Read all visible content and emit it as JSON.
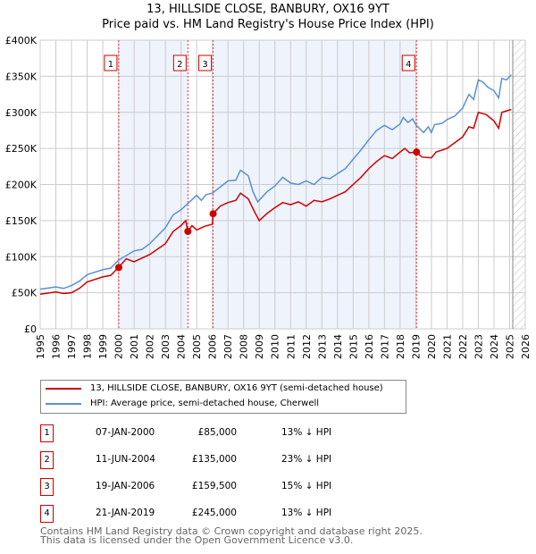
{
  "chart_data": {
    "type": "line",
    "title": "13, HILLSIDE CLOSE, BANBURY, OX16 9YT",
    "subtitle": "Price paid vs. HM Land Registry's House Price Index (HPI)",
    "xlim": [
      1995,
      2026
    ],
    "ylim": [
      0,
      400000
    ],
    "y_ticks": [
      0,
      50000,
      100000,
      150000,
      200000,
      250000,
      300000,
      350000,
      400000
    ],
    "y_tick_labels": [
      "£0",
      "£50K",
      "£100K",
      "£150K",
      "£200K",
      "£250K",
      "£300K",
      "£350K",
      "£400K"
    ],
    "x_ticks": [
      1995,
      1996,
      1997,
      1998,
      1999,
      2000,
      2001,
      2002,
      2003,
      2004,
      2005,
      2006,
      2007,
      2008,
      2009,
      2010,
      2011,
      2012,
      2013,
      2014,
      2015,
      2016,
      2017,
      2018,
      2019,
      2020,
      2021,
      2022,
      2023,
      2024,
      2025,
      2026
    ],
    "grid": true,
    "shaded_ranges": [
      [
        2000.02,
        2004.44
      ],
      [
        2006.05,
        2019.05
      ]
    ],
    "forecast_hatch_from": 2025.2,
    "series": [
      {
        "name": "13, HILLSIDE CLOSE, BANBURY, OX16 9YT (semi-detached house)",
        "color": "#cc0000",
        "points": [
          [
            1995,
            48
          ],
          [
            1996,
            51
          ],
          [
            1996.5,
            49
          ],
          [
            1997,
            50
          ],
          [
            1997.5,
            56
          ],
          [
            1998,
            65
          ],
          [
            1999,
            72
          ],
          [
            1999.5,
            74
          ],
          [
            2000,
            85
          ],
          [
            2000.5,
            97
          ],
          [
            2001,
            93
          ],
          [
            2002,
            103
          ],
          [
            2003,
            118
          ],
          [
            2003.5,
            135
          ],
          [
            2004,
            143
          ],
          [
            2004.3,
            150
          ],
          [
            2004.44,
            135
          ],
          [
            2004.7,
            143
          ],
          [
            2005,
            137
          ],
          [
            2005.5,
            142
          ],
          [
            2006,
            145
          ],
          [
            2006.05,
            159.5
          ],
          [
            2006.5,
            170
          ],
          [
            2007,
            175
          ],
          [
            2007.5,
            178
          ],
          [
            2007.8,
            188
          ],
          [
            2008.3,
            180
          ],
          [
            2008.7,
            162
          ],
          [
            2009,
            150
          ],
          [
            2009.5,
            160
          ],
          [
            2010,
            168
          ],
          [
            2010.5,
            175
          ],
          [
            2011,
            172
          ],
          [
            2011.5,
            176
          ],
          [
            2012,
            170
          ],
          [
            2012.5,
            178
          ],
          [
            2013,
            176
          ],
          [
            2013.5,
            180
          ],
          [
            2014,
            185
          ],
          [
            2014.5,
            190
          ],
          [
            2015,
            200
          ],
          [
            2015.5,
            210
          ],
          [
            2016,
            222
          ],
          [
            2016.5,
            232
          ],
          [
            2017,
            240
          ],
          [
            2017.5,
            236
          ],
          [
            2018,
            245
          ],
          [
            2018.3,
            250
          ],
          [
            2018.6,
            244
          ],
          [
            2019.05,
            245
          ],
          [
            2019.4,
            238
          ],
          [
            2020,
            237
          ],
          [
            2020.3,
            245
          ],
          [
            2021,
            250
          ],
          [
            2021.5,
            258
          ],
          [
            2022,
            266
          ],
          [
            2022.4,
            280
          ],
          [
            2022.7,
            278
          ],
          [
            2023,
            300
          ],
          [
            2023.5,
            297
          ],
          [
            2024,
            288
          ],
          [
            2024.3,
            278
          ],
          [
            2024.5,
            300
          ],
          [
            2025.1,
            304
          ]
        ]
      },
      {
        "name": "HPI: Average price, semi-detached house, Cherwell",
        "color": "#5b8fd6",
        "points": [
          [
            1995,
            55
          ],
          [
            1996,
            58
          ],
          [
            1996.5,
            56
          ],
          [
            1997,
            60
          ],
          [
            1997.5,
            66
          ],
          [
            1998,
            75
          ],
          [
            1999,
            82
          ],
          [
            1999.5,
            84
          ],
          [
            2000,
            95
          ],
          [
            2001,
            108
          ],
          [
            2001.5,
            110
          ],
          [
            2002,
            118
          ],
          [
            2003,
            140
          ],
          [
            2003.5,
            158
          ],
          [
            2004,
            165
          ],
          [
            2004.5,
            175
          ],
          [
            2005,
            185
          ],
          [
            2005.3,
            178
          ],
          [
            2005.6,
            186
          ],
          [
            2006,
            188
          ],
          [
            2007,
            205
          ],
          [
            2007.5,
            206
          ],
          [
            2007.8,
            220
          ],
          [
            2008.3,
            212
          ],
          [
            2008.6,
            190
          ],
          [
            2008.9,
            176
          ],
          [
            2009.5,
            190
          ],
          [
            2010,
            198
          ],
          [
            2010.5,
            210
          ],
          [
            2011,
            202
          ],
          [
            2011.5,
            200
          ],
          [
            2012,
            205
          ],
          [
            2012.5,
            200
          ],
          [
            2013,
            210
          ],
          [
            2013.5,
            208
          ],
          [
            2014,
            215
          ],
          [
            2014.5,
            222
          ],
          [
            2015,
            235
          ],
          [
            2015.5,
            248
          ],
          [
            2016,
            262
          ],
          [
            2016.5,
            275
          ],
          [
            2017,
            282
          ],
          [
            2017.5,
            276
          ],
          [
            2018,
            284
          ],
          [
            2018.2,
            293
          ],
          [
            2018.5,
            286
          ],
          [
            2018.8,
            291
          ],
          [
            2019,
            283
          ],
          [
            2019.5,
            272
          ],
          [
            2019.8,
            280
          ],
          [
            2020,
            272
          ],
          [
            2020.2,
            283
          ],
          [
            2020.7,
            285
          ],
          [
            2021,
            290
          ],
          [
            2021.5,
            295
          ],
          [
            2022,
            306
          ],
          [
            2022.4,
            325
          ],
          [
            2022.7,
            318
          ],
          [
            2023,
            345
          ],
          [
            2023.3,
            342
          ],
          [
            2023.6,
            335
          ],
          [
            2024,
            330
          ],
          [
            2024.3,
            320
          ],
          [
            2024.5,
            347
          ],
          [
            2024.8,
            345
          ],
          [
            2025.1,
            352
          ]
        ]
      }
    ],
    "points_unit": "thousands GBP",
    "sales": [
      {
        "label": "1",
        "x": 2000.02,
        "value": 85000,
        "date": "07-JAN-2000",
        "price": "£85,000",
        "hpi": "13% ↓ HPI"
      },
      {
        "label": "2",
        "x": 2004.44,
        "value": 135000,
        "date": "11-JUN-2004",
        "price": "£135,000",
        "hpi": "23% ↓ HPI"
      },
      {
        "label": "3",
        "x": 2006.05,
        "value": 159500,
        "date": "19-JAN-2006",
        "price": "£159,500",
        "hpi": "15% ↓ HPI"
      },
      {
        "label": "4",
        "x": 2019.05,
        "value": 245000,
        "date": "21-JAN-2019",
        "price": "£245,000",
        "hpi": "13% ↓ HPI"
      }
    ]
  },
  "footer": {
    "line1": "Contains HM Land Registry data © Crown copyright and database right 2025.",
    "line2": "This data is licensed under the Open Government Licence v3.0."
  }
}
